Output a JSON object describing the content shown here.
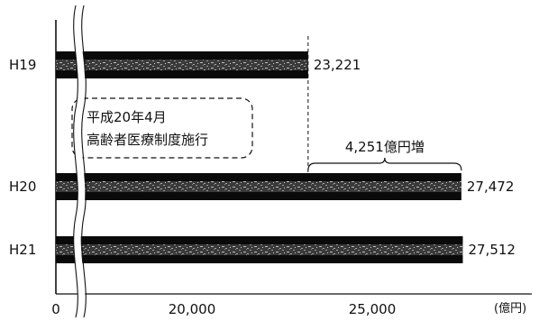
{
  "chart_data": {
    "type": "bar",
    "orientation": "horizontal",
    "categories": [
      "H19",
      "H20",
      "H21"
    ],
    "values": [
      23221,
      27472,
      27512
    ],
    "value_labels": [
      "23,221",
      "27,472",
      "27,512"
    ],
    "xlim": [
      15000,
      29000
    ],
    "axis_break": true,
    "x_ticks": [
      0,
      20000,
      25000
    ],
    "x_tick_labels": [
      "0",
      "20,000",
      "25,000"
    ],
    "x_unit_label": "(億円)",
    "grid": false,
    "legend": "none",
    "annotations": {
      "callout_line1": "平成20年4月",
      "callout_line2": "高齢者医療制度施行",
      "increase_label": "4,251億円増"
    }
  }
}
